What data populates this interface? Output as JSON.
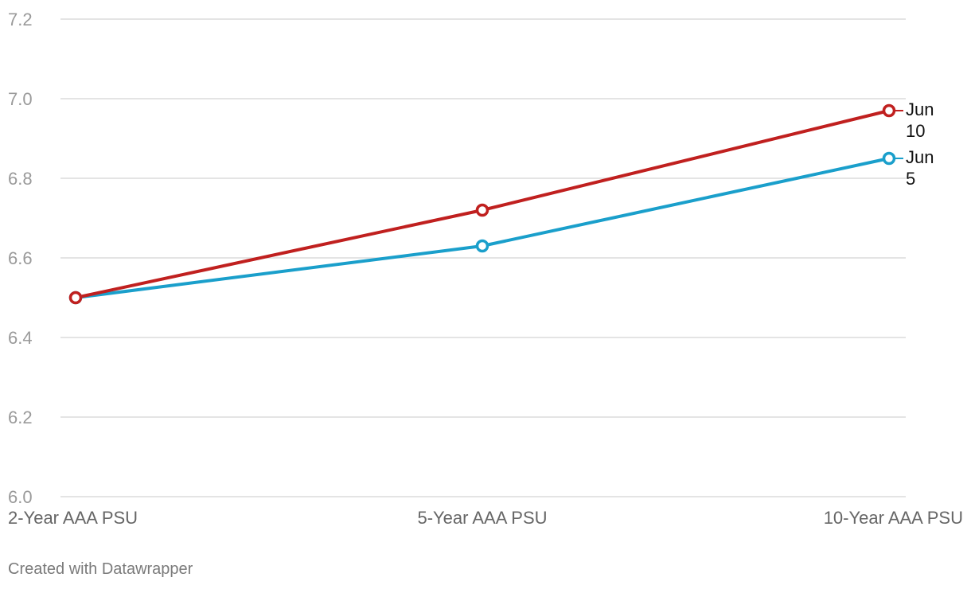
{
  "chart_data": {
    "type": "line",
    "categories": [
      "2-Year AAA PSU",
      "5-Year AAA PSU",
      "10-Year AAA PSU"
    ],
    "ylim": [
      6.0,
      7.2
    ],
    "yticks": [
      "6.0",
      "6.2",
      "6.4",
      "6.6",
      "6.8",
      "7.0",
      "7.2"
    ],
    "grid": true,
    "series": [
      {
        "name": "Jun 10",
        "label_lines": [
          "Jun",
          "10"
        ],
        "color": "#c0201f",
        "values": [
          6.5,
          6.72,
          6.97
        ]
      },
      {
        "name": "Jun 5",
        "label_lines": [
          "Jun",
          "5"
        ],
        "color": "#1a9fcb",
        "values": [
          6.5,
          6.63,
          6.85
        ]
      }
    ]
  },
  "footer": {
    "credit": "Created with Datawrapper"
  }
}
